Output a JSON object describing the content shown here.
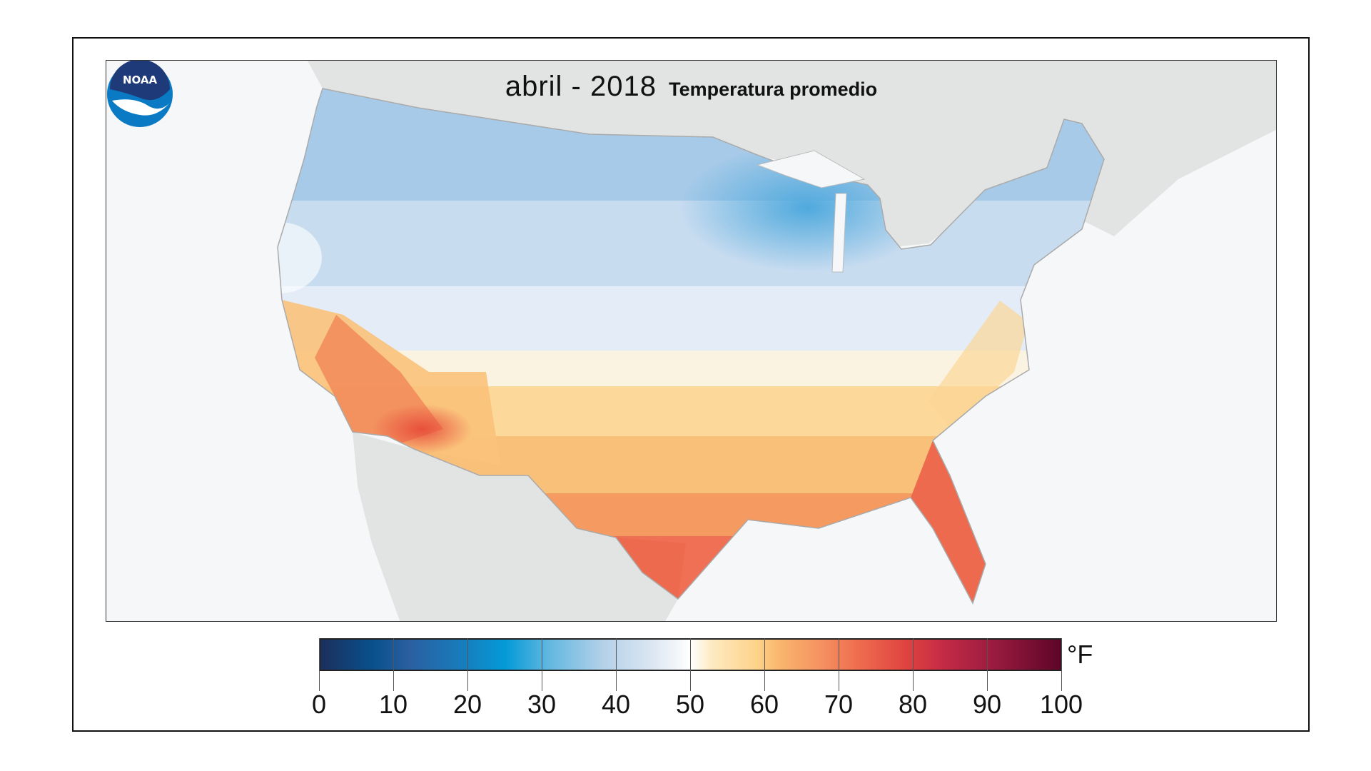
{
  "title": {
    "period": "abril  - 2018",
    "variable": "Temperatura promedio"
  },
  "logo": {
    "text": "NOAA"
  },
  "legend": {
    "unit": "°F",
    "ticks": [
      "0",
      "10",
      "20",
      "30",
      "40",
      "50",
      "60",
      "70",
      "80",
      "90",
      "100"
    ],
    "range": [
      0,
      100
    ],
    "colors": [
      "#1c2f5c",
      "#08508c",
      "#049ad8",
      "#b2d0e8",
      "#ffffff",
      "#fdd38a",
      "#f58f60",
      "#e04440",
      "#c52b45",
      "#5e0528"
    ]
  },
  "map": {
    "region": "Contiguous United States",
    "land_color": "#e2e4e4",
    "water_color": "#f5f7f9"
  }
}
